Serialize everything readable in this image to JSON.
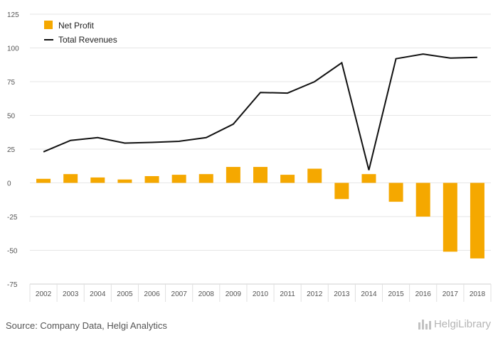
{
  "chart_data": {
    "type": "bar+line",
    "categories": [
      "2002",
      "2003",
      "2004",
      "2005",
      "2006",
      "2007",
      "2008",
      "2009",
      "2010",
      "2011",
      "2012",
      "2013",
      "2014",
      "2015",
      "2016",
      "2017",
      "2018"
    ],
    "series": [
      {
        "name": "Net Profit",
        "type": "bar",
        "color": "#f5a800",
        "values": [
          3,
          6.5,
          4,
          2.5,
          5,
          6,
          6.5,
          11.8,
          11.8,
          6,
          10.5,
          -12,
          6.5,
          -14,
          -25,
          -51,
          -56
        ]
      },
      {
        "name": "Total Revenues",
        "type": "line",
        "color": "#111111",
        "values": [
          23,
          31.5,
          33.5,
          29.5,
          30,
          30.8,
          33.5,
          43.5,
          67,
          66.5,
          75,
          89,
          9.5,
          92,
          95.5,
          92.5,
          93
        ]
      }
    ],
    "ylim": [
      -75,
      125
    ],
    "yticks": [
      125,
      100,
      75,
      50,
      25,
      0,
      -25,
      -50,
      -75
    ],
    "grid": true,
    "legend_position": "top-left"
  },
  "footer": {
    "source": "Source: Company Data, Helgi Analytics",
    "brand": "HelgiLibrary"
  }
}
